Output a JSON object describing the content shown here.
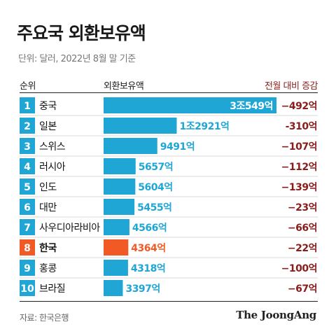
{
  "title": "주요국 외환보유액",
  "unit": "단위: 달러, 2022년 8월 말 기준",
  "headers": {
    "rank": "순위",
    "value": "외환보유액",
    "change": "전월 대비 증감"
  },
  "source": "자료: 한국은행",
  "logo": "The JoongAng",
  "colors": {
    "bar": "#1fa6d5",
    "highlight": "#f15a24",
    "change_text": "#8b1c1c",
    "bar_bg": "#eeeeee",
    "row_line": "#d9d9d9"
  },
  "chart_data": {
    "type": "bar",
    "orientation": "horizontal",
    "title": "주요국 외환보유액",
    "unit": "억 달러",
    "highlight_index": 7,
    "ranks": [
      "1",
      "2",
      "3",
      "4",
      "5",
      "6",
      "7",
      "8",
      "9",
      "10"
    ],
    "categories": [
      "중국",
      "일본",
      "스위스",
      "러시아",
      "인도",
      "대만",
      "사우디아라비아",
      "한국",
      "홍콩",
      "브라질"
    ],
    "values": [
      30549,
      12921,
      9491,
      5657,
      5604,
      5455,
      4566,
      4364,
      4318,
      3397
    ],
    "value_labels": [
      "3조549억",
      "1조2921억",
      "9491억",
      "5657억",
      "5604억",
      "5455억",
      "4566억",
      "4364억",
      "4318억",
      "3397억"
    ],
    "changes": [
      -492,
      -310,
      -107,
      -112,
      -139,
      -23,
      -66,
      -22,
      -100,
      -67
    ],
    "change_labels": [
      "−492억",
      "-310억",
      "−107억",
      "−112억",
      "−139억",
      "−23억",
      "−66억",
      "−22억",
      "−100억",
      "−67억"
    ]
  }
}
